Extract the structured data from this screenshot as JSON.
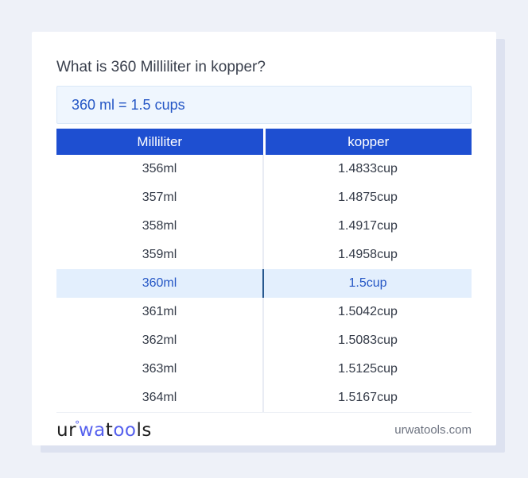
{
  "header": {
    "title": "What is 360 Milliliter in kopper?",
    "result": "360 ml = 1.5 cups"
  },
  "table": {
    "columns": [
      "Milliliter",
      "kopper"
    ],
    "rows": [
      {
        "milliliter": "356ml",
        "kopper": "1.4833cup",
        "highlight": false
      },
      {
        "milliliter": "357ml",
        "kopper": "1.4875cup",
        "highlight": false
      },
      {
        "milliliter": "358ml",
        "kopper": "1.4917cup",
        "highlight": false
      },
      {
        "milliliter": "359ml",
        "kopper": "1.4958cup",
        "highlight": false
      },
      {
        "milliliter": "360ml",
        "kopper": "1.5cup",
        "highlight": true
      },
      {
        "milliliter": "361ml",
        "kopper": "1.5042cup",
        "highlight": false
      },
      {
        "milliliter": "362ml",
        "kopper": "1.5083cup",
        "highlight": false
      },
      {
        "milliliter": "363ml",
        "kopper": "1.5125cup",
        "highlight": false
      },
      {
        "milliliter": "364ml",
        "kopper": "1.5167cup",
        "highlight": false
      }
    ]
  },
  "footer": {
    "logo_parts": [
      {
        "text": "ur",
        "color": "dark"
      },
      {
        "text": "°",
        "color": "blue",
        "style": "degree"
      },
      {
        "text": "wa",
        "color": "blue"
      },
      {
        "text": "t",
        "color": "dark"
      },
      {
        "text": "oo",
        "color": "blue"
      },
      {
        "text": "ls",
        "color": "dark"
      }
    ],
    "domain": "urwatools.com"
  },
  "colors": {
    "page_bg": "#eef1f8",
    "card_bg": "#ffffff",
    "card_shadow": "#dde2f0",
    "table_header_blue": "#1e4fd1",
    "result_bg": "#eff6fe",
    "result_border": "#d9e7f7",
    "accent_text": "#2456c5",
    "highlight_row_bg": "#e3effd",
    "highlight_divider": "#27588f",
    "row_text": "#333a47",
    "divider": "#e9ecf4",
    "logo_dark": "#1e1e1e",
    "logo_blue": "#5560ee",
    "muted_text": "#6d7380"
  }
}
